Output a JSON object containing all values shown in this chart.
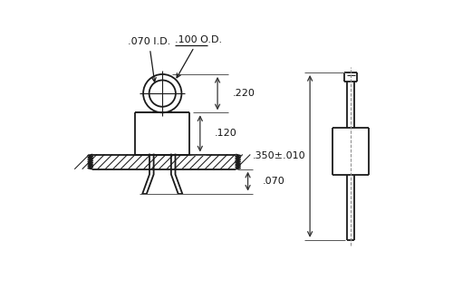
{
  "bg_color": "#ffffff",
  "line_color": "#1a1a1a",
  "text_color": "#111111",
  "dims": {
    "od_label": ".100 O.D.",
    "id_label": ".070 I.D.",
    "h220_label": ".220",
    "h120_label": ".120",
    "h070_label": ".070",
    "h350_label": ".350±.010"
  },
  "layout": {
    "fig_w": 5.0,
    "fig_h": 3.3,
    "dpi": 100,
    "xlim": [
      0,
      10
    ],
    "ylim": [
      0,
      6.6
    ]
  }
}
